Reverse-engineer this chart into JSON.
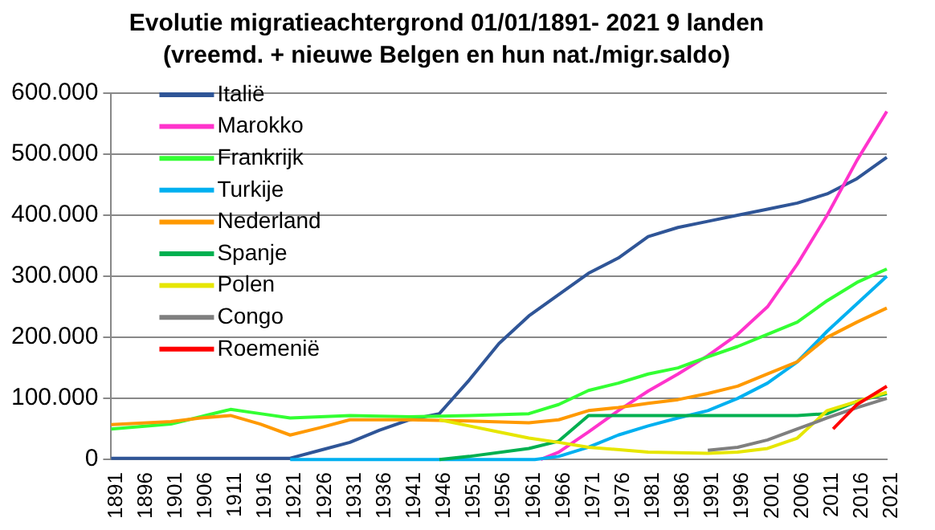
{
  "chart_data": {
    "type": "line",
    "title": "Evolutie migratieachtergrond 01/01/1891- 2021 9 landen",
    "subtitle": "(vreemd. + nieuwe Belgen en hun nat./migr.saldo)",
    "xlim": [
      1891,
      2021
    ],
    "xticks": [
      1891,
      1896,
      1901,
      1906,
      1911,
      1916,
      1921,
      1926,
      1931,
      1936,
      1941,
      1946,
      1951,
      1956,
      1961,
      1966,
      1971,
      1976,
      1981,
      1986,
      1991,
      1996,
      2001,
      2006,
      2011,
      2016,
      2021
    ],
    "ylim": [
      0,
      600000
    ],
    "yticks": [
      {
        "value": 0,
        "label": "0"
      },
      {
        "value": 100000,
        "label": "100.000"
      },
      {
        "value": 200000,
        "label": "200.000"
      },
      {
        "value": 300000,
        "label": "300.000"
      },
      {
        "value": 400000,
        "label": "400.000"
      },
      {
        "value": 500000,
        "label": "500.000"
      },
      {
        "value": 600000,
        "label": "600.000"
      }
    ],
    "grid": "y",
    "legend": "top left",
    "marker": "none",
    "line_style": "solid",
    "series": [
      {
        "name": "Italië",
        "color": "#2f5597",
        "x": [
          1891,
          1921,
          1926,
          1931,
          1936,
          1941,
          1946,
          1951,
          1956,
          1961,
          1966,
          1971,
          1976,
          1981,
          1986,
          1991,
          1996,
          2001,
          2006,
          2011,
          2016,
          2021
        ],
        "values": [
          2000,
          2000,
          15000,
          28000,
          48000,
          65000,
          75000,
          130000,
          190000,
          235000,
          270000,
          305000,
          330000,
          365000,
          380000,
          390000,
          400000,
          410000,
          420000,
          435000,
          460000,
          495000
        ]
      },
      {
        "name": "Marokko",
        "color": "#ff33cc",
        "x": [
          1963,
          1966,
          1971,
          1976,
          1981,
          1986,
          1991,
          1996,
          2001,
          2006,
          2011,
          2016,
          2021
        ],
        "values": [
          0,
          12000,
          45000,
          80000,
          112000,
          140000,
          170000,
          205000,
          250000,
          320000,
          400000,
          490000,
          570000
        ]
      },
      {
        "name": "Frankrijk",
        "color": "#33ff33",
        "x": [
          1891,
          1901,
          1906,
          1911,
          1916,
          1921,
          1926,
          1931,
          1941,
          1951,
          1961,
          1966,
          1971,
          1976,
          1981,
          1986,
          1991,
          1996,
          2001,
          2006,
          2011,
          2016,
          2021
        ],
        "values": [
          50000,
          58000,
          70000,
          82000,
          75000,
          68000,
          70000,
          72000,
          70000,
          72000,
          75000,
          90000,
          113000,
          125000,
          140000,
          150000,
          168000,
          185000,
          205000,
          225000,
          260000,
          290000,
          312000
        ]
      },
      {
        "name": "Turkije",
        "color": "#00b0f0",
        "x": [
          1921,
          1962,
          1966,
          1971,
          1976,
          1981,
          1986,
          1991,
          1996,
          2001,
          2006,
          2011,
          2016,
          2021
        ],
        "values": [
          0,
          0,
          5000,
          20000,
          40000,
          55000,
          68000,
          80000,
          100000,
          125000,
          160000,
          210000,
          255000,
          300000
        ]
      },
      {
        "name": "Nederland",
        "color": "#ff9900",
        "x": [
          1891,
          1901,
          1906,
          1911,
          1916,
          1921,
          1926,
          1931,
          1941,
          1951,
          1961,
          1966,
          1971,
          1976,
          1981,
          1986,
          1991,
          1996,
          2001,
          2006,
          2011,
          2016,
          2021
        ],
        "values": [
          57000,
          62000,
          68000,
          72000,
          58000,
          40000,
          52000,
          65000,
          65000,
          63000,
          60000,
          65000,
          80000,
          85000,
          92000,
          98000,
          108000,
          120000,
          140000,
          160000,
          200000,
          225000,
          248000
        ]
      },
      {
        "name": "Spanje",
        "color": "#00b050",
        "x": [
          1946,
          1951,
          1961,
          1966,
          1971,
          1976,
          1991,
          2006,
          2011,
          2016,
          2021
        ],
        "values": [
          0,
          5000,
          18000,
          30000,
          72000,
          72000,
          72000,
          72000,
          75000,
          95000,
          108000
        ]
      },
      {
        "name": "Polen",
        "color": "#e6e600",
        "x": [
          1946,
          1951,
          1956,
          1961,
          1966,
          1971,
          1981,
          1991,
          1996,
          2001,
          2006,
          2011,
          2016,
          2021
        ],
        "values": [
          65000,
          55000,
          45000,
          35000,
          28000,
          20000,
          12000,
          10000,
          12000,
          18000,
          35000,
          80000,
          95000,
          110000
        ]
      },
      {
        "name": "Congo",
        "color": "#7f7f7f",
        "x": [
          1991,
          1996,
          2001,
          2006,
          2011,
          2016,
          2021
        ],
        "values": [
          15000,
          20000,
          32000,
          50000,
          68000,
          85000,
          100000
        ]
      },
      {
        "name": "Roemenië",
        "color": "#ff0000",
        "x": [
          2012,
          2016,
          2021
        ],
        "values": [
          50000,
          90000,
          120000
        ]
      }
    ]
  }
}
